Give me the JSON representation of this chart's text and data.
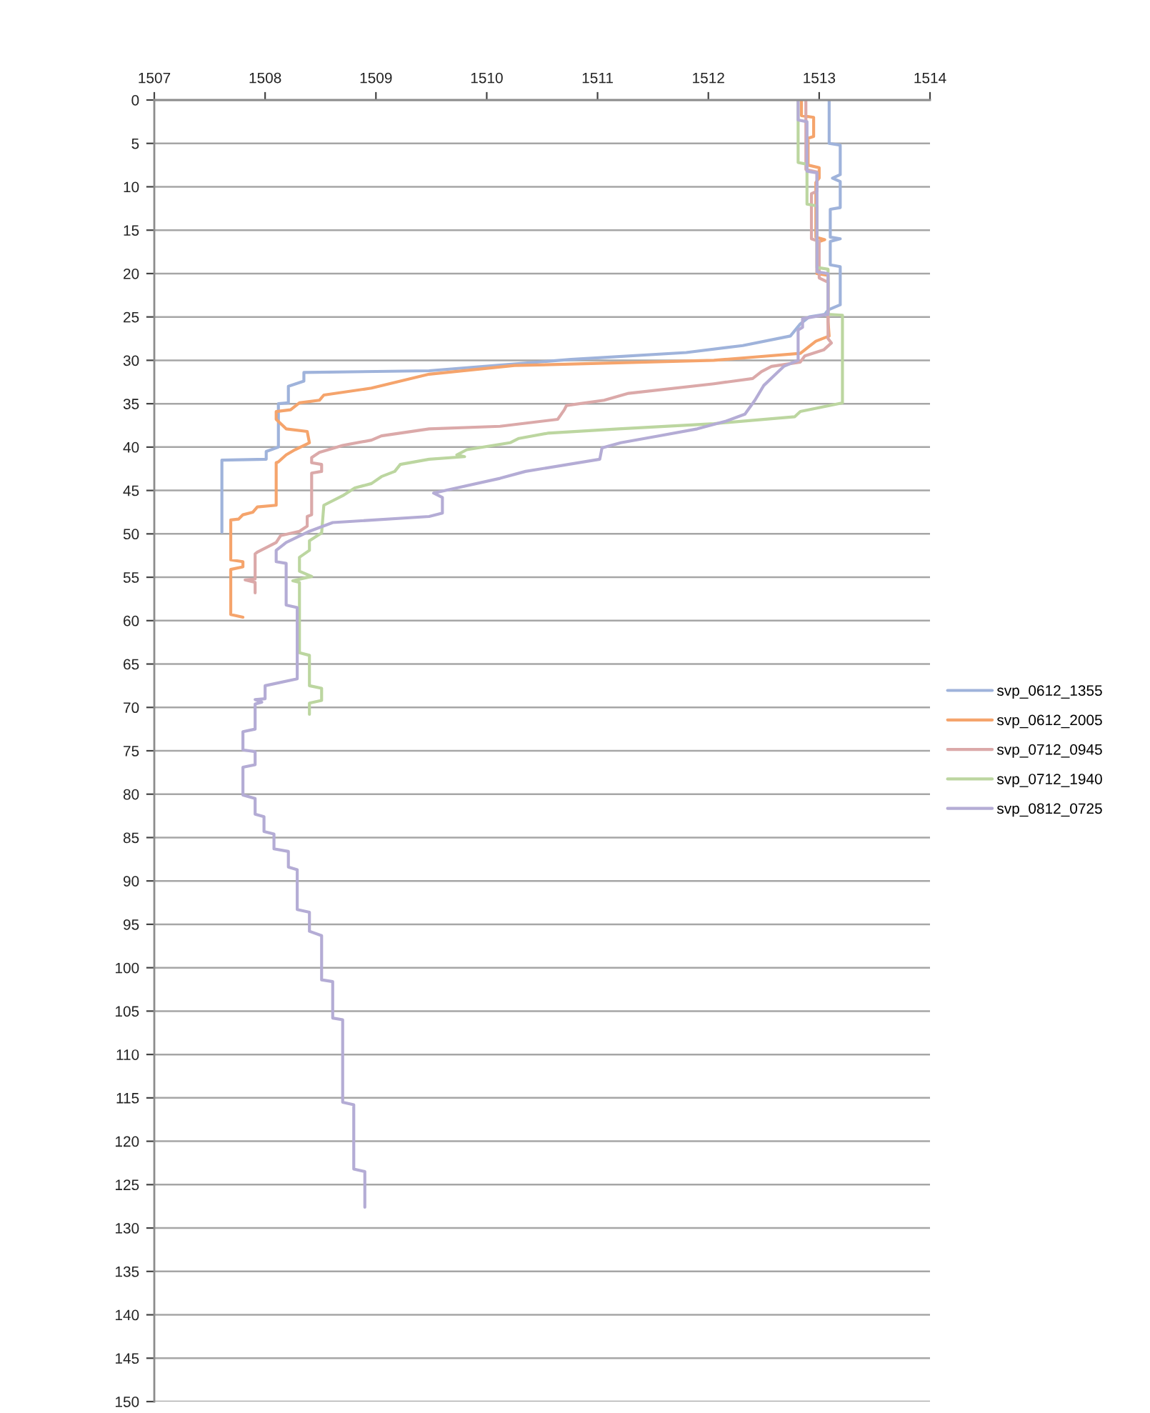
{
  "chart_data": {
    "type": "line",
    "xlim": [
      1507,
      1514
    ],
    "xticks": [
      1507,
      1508,
      1509,
      1510,
      1511,
      1512,
      1513,
      1514
    ],
    "ylim": [
      150,
      0
    ],
    "yticks": [
      0,
      5,
      10,
      15,
      20,
      25,
      30,
      35,
      40,
      45,
      50,
      55,
      60,
      65,
      70,
      75,
      80,
      85,
      90,
      95,
      100,
      105,
      110,
      115,
      120,
      125,
      130,
      135,
      140,
      145,
      150
    ],
    "grid": "y",
    "legend": "right",
    "marker": "none",
    "line_style": "solid",
    "series": [
      {
        "name": "svp_0612_1355",
        "color": "#9fb3db",
        "x": [
          1513.09,
          1513.09,
          1513.19,
          1513.19,
          1513.12,
          1513.19,
          1513.19,
          1513.1,
          1513.1,
          1513.19,
          1513.1,
          1513.1,
          1513.19,
          1513.19,
          1513.08,
          1513.05,
          1512.91,
          1512.83,
          1512.74,
          1512.31,
          1511.8,
          1510.76,
          1509.48,
          1508.35,
          1508.35,
          1508.21,
          1508.21,
          1508.12,
          1508.12,
          1508.01,
          1508.01,
          1507.61,
          1507.61
        ],
        "values": [
          0,
          5,
          5.2,
          8.6,
          9.0,
          9.4,
          12.4,
          12.6,
          15.8,
          16.0,
          16.3,
          19.0,
          19.2,
          23.6,
          24.2,
          24.7,
          25.0,
          25.8,
          27.2,
          28.3,
          29.1,
          29.9,
          31.2,
          31.4,
          32.4,
          33.0,
          34.9,
          35.0,
          40.0,
          40.5,
          41.4,
          41.5,
          49.8
        ]
      },
      {
        "name": "svp_0612_2005",
        "color": "#f5a46c",
        "x": [
          1512.84,
          1512.84,
          1512.95,
          1512.95,
          1512.9,
          1512.9,
          1513.0,
          1513.0,
          1512.97,
          1512.97,
          1513.05,
          1512.98,
          1512.98,
          1513.08,
          1513.08,
          1513.09,
          1512.97,
          1512.83,
          1512.44,
          1512.05,
          1510.25,
          1509.48,
          1508.96,
          1508.53,
          1508.49,
          1508.31,
          1508.23,
          1508.1,
          1508.1,
          1508.19,
          1508.38,
          1508.4,
          1508.27,
          1508.19,
          1508.12,
          1508.1,
          1508.1,
          1507.93,
          1507.89,
          1507.8,
          1507.76,
          1507.69,
          1507.69,
          1507.8,
          1507.8,
          1507.69,
          1507.69,
          1507.8
        ],
        "values": [
          0,
          1.8,
          2.0,
          4.2,
          4.4,
          7.5,
          7.8,
          9.0,
          9.5,
          15.8,
          16.1,
          16.4,
          20.0,
          20.2,
          25.5,
          27.2,
          27.8,
          29.2,
          29.6,
          30.0,
          30.6,
          31.6,
          33.2,
          34.0,
          34.6,
          34.9,
          35.7,
          35.9,
          36.8,
          37.9,
          38.2,
          39.5,
          40.3,
          40.9,
          41.7,
          41.8,
          46.7,
          46.9,
          47.5,
          47.8,
          48.3,
          48.4,
          53.0,
          53.2,
          53.8,
          54.1,
          59.3,
          59.6
        ]
      },
      {
        "name": "svp_0712_0945",
        "color": "#dba9a9",
        "x": [
          1512.88,
          1512.88,
          1512.98,
          1512.98,
          1512.93,
          1512.93,
          1513.0,
          1513.0,
          1513.08,
          1513.08,
          1513.11,
          1513.04,
          1512.87,
          1512.83,
          1512.57,
          1512.48,
          1512.4,
          1512.05,
          1511.28,
          1511.06,
          1510.72,
          1510.7,
          1510.64,
          1510.12,
          1509.48,
          1509.05,
          1508.96,
          1508.7,
          1508.49,
          1508.42,
          1508.42,
          1508.51,
          1508.51,
          1508.42,
          1508.42,
          1508.38,
          1508.38,
          1508.31,
          1508.14,
          1508.1,
          1507.93,
          1507.91,
          1507.91,
          1507.82,
          1507.91,
          1507.91
        ],
        "values": [
          0,
          8.0,
          8.3,
          10.5,
          10.8,
          16.0,
          16.3,
          20.5,
          21.0,
          27.5,
          28.0,
          28.8,
          29.5,
          30.2,
          30.7,
          31.3,
          32.1,
          32.7,
          33.8,
          34.6,
          35.2,
          35.7,
          36.8,
          37.6,
          37.9,
          38.7,
          39.2,
          39.8,
          40.6,
          41.2,
          41.8,
          42.0,
          42.8,
          43.0,
          47.8,
          48.0,
          49.1,
          49.7,
          50.2,
          51.0,
          52.1,
          52.3,
          55.2,
          55.3,
          55.6,
          56.8
        ]
      },
      {
        "name": "svp_0712_1940",
        "color": "#bcd6a0",
        "x": [
          1512.81,
          1512.81,
          1512.89,
          1512.89,
          1512.98,
          1512.98,
          1513.08,
          1513.08,
          1513.21,
          1513.21,
          1512.83,
          1512.78,
          1512.05,
          1511.19,
          1510.55,
          1510.29,
          1510.21,
          1509.82,
          1509.73,
          1509.8,
          1509.48,
          1509.22,
          1509.17,
          1509.05,
          1508.96,
          1508.81,
          1508.7,
          1508.53,
          1508.51,
          1508.4,
          1508.4,
          1508.31,
          1508.31,
          1508.42,
          1508.25,
          1508.31,
          1508.31,
          1508.4,
          1508.4,
          1508.51,
          1508.51,
          1508.4,
          1508.4
        ],
        "values": [
          0,
          7.2,
          7.4,
          12.0,
          12.2,
          19.3,
          19.5,
          24.7,
          24.8,
          34.9,
          35.9,
          36.5,
          37.3,
          37.9,
          38.4,
          39.0,
          39.5,
          40.3,
          40.9,
          41.1,
          41.4,
          42.0,
          42.8,
          43.4,
          44.2,
          44.7,
          45.6,
          46.7,
          49.9,
          50.8,
          51.9,
          52.7,
          54.3,
          54.9,
          55.4,
          55.6,
          63.7,
          64.0,
          67.5,
          67.8,
          69.2,
          69.5,
          70.8
        ]
      },
      {
        "name": "svp_0812_0725",
        "color": "#b4acd5",
        "x": [
          1512.81,
          1512.81,
          1512.89,
          1512.89,
          1512.98,
          1512.98,
          1513.08,
          1513.08,
          1512.85,
          1512.85,
          1512.81,
          1512.81,
          1512.68,
          1512.59,
          1512.5,
          1512.42,
          1512.33,
          1512.16,
          1511.9,
          1511.56,
          1511.21,
          1511.04,
          1511.02,
          1510.35,
          1510.12,
          1509.73,
          1509.52,
          1509.6,
          1509.6,
          1509.48,
          1508.61,
          1508.4,
          1508.19,
          1508.1,
          1508.1,
          1508.19,
          1508.19,
          1508.29,
          1508.29,
          1508.0,
          1508.0,
          1507.91,
          1507.97,
          1507.91,
          1507.91,
          1507.8,
          1507.8,
          1507.91,
          1507.91,
          1507.8,
          1507.8,
          1507.91,
          1507.91,
          1507.99,
          1507.99,
          1508.08,
          1508.08,
          1508.21,
          1508.21,
          1508.29,
          1508.29,
          1508.4,
          1508.4,
          1508.51,
          1508.51,
          1508.61,
          1508.61,
          1508.7,
          1508.7,
          1508.8,
          1508.8,
          1508.9,
          1508.9
        ],
        "values": [
          0,
          2.3,
          2.5,
          8.2,
          8.4,
          19.8,
          20.0,
          24.7,
          25.2,
          26.2,
          26.5,
          30.0,
          30.7,
          31.8,
          32.9,
          34.6,
          36.2,
          37.0,
          37.9,
          38.7,
          39.5,
          40.1,
          41.4,
          42.8,
          43.6,
          44.7,
          45.3,
          45.8,
          47.6,
          48.0,
          48.7,
          49.7,
          51.0,
          51.9,
          53.2,
          53.4,
          58.2,
          58.5,
          66.7,
          67.5,
          69.0,
          69.1,
          69.4,
          69.6,
          72.5,
          72.8,
          74.9,
          75.1,
          76.6,
          76.9,
          80.1,
          80.5,
          82.3,
          82.6,
          84.3,
          84.6,
          86.3,
          86.6,
          88.4,
          88.7,
          93.3,
          93.6,
          95.8,
          96.3,
          101.4,
          101.6,
          105.8,
          106.0,
          115.5,
          115.8,
          123.2,
          123.5,
          127.6
        ]
      }
    ]
  }
}
